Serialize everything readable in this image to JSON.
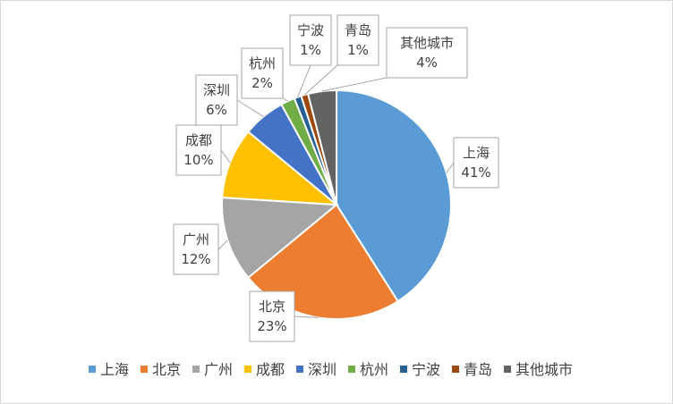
{
  "chart_data": {
    "type": "pie",
    "title": "",
    "legend_position": "bottom",
    "slices": [
      {
        "name": "上海",
        "value": 41,
        "label": "41%",
        "color": "#5b9bd5"
      },
      {
        "name": "北京",
        "value": 23,
        "label": "23%",
        "color": "#ed7d31"
      },
      {
        "name": "广州",
        "value": 12,
        "label": "12%",
        "color": "#a5a5a5"
      },
      {
        "name": "成都",
        "value": 10,
        "label": "10%",
        "color": "#ffc000"
      },
      {
        "name": "深圳",
        "value": 6,
        "label": "6%",
        "color": "#4472c4"
      },
      {
        "name": "杭州",
        "value": 2,
        "label": "2%",
        "color": "#70ad47"
      },
      {
        "name": "宁波",
        "value": 1,
        "label": "1%",
        "color": "#255e91"
      },
      {
        "name": "青岛",
        "value": 1,
        "label": "1%",
        "color": "#9e480e"
      },
      {
        "name": "其他城市",
        "value": 4,
        "label": "4%",
        "color": "#636363"
      }
    ]
  }
}
